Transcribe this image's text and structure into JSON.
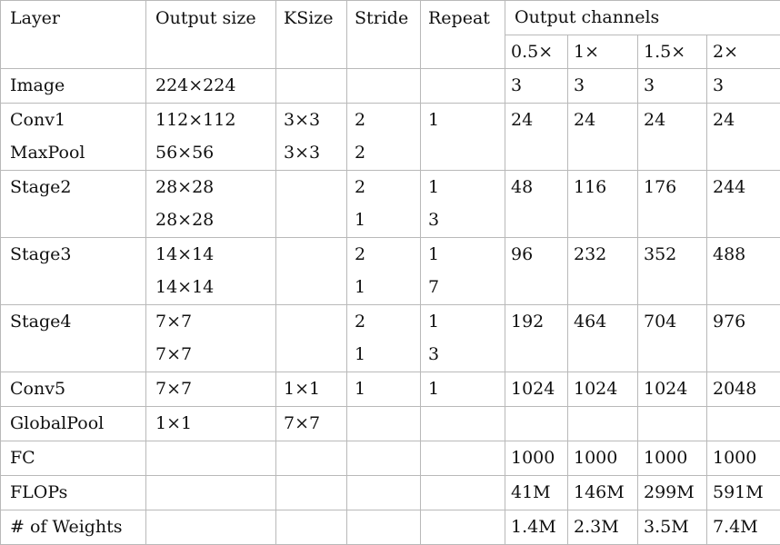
{
  "table": {
    "header": {
      "layer": "Layer",
      "output_size": "Output size",
      "ksize": "KSize",
      "stride": "Stride",
      "repeat": "Repeat",
      "output_channels": "Output channels",
      "widths": [
        "0.5×",
        "1×",
        "1.5×",
        "2×"
      ]
    },
    "rows": [
      {
        "layer": [
          "Image"
        ],
        "output_size": [
          "224×224"
        ],
        "ksize": [
          ""
        ],
        "stride": [
          ""
        ],
        "repeat": [
          ""
        ],
        "channels": [
          "3",
          "3",
          "3",
          "3"
        ]
      },
      {
        "layer": [
          "Conv1",
          "MaxPool"
        ],
        "output_size": [
          "112×112",
          "56×56"
        ],
        "ksize": [
          "3×3",
          "3×3"
        ],
        "stride": [
          "2",
          "2"
        ],
        "repeat": [
          "1",
          ""
        ],
        "channels": [
          "24",
          "24",
          "24",
          "24"
        ]
      },
      {
        "layer": [
          "Stage2",
          ""
        ],
        "output_size": [
          "28×28",
          "28×28"
        ],
        "ksize": [
          "",
          ""
        ],
        "stride": [
          "2",
          "1"
        ],
        "repeat": [
          "1",
          "3"
        ],
        "channels": [
          "48",
          "116",
          "176",
          "244"
        ]
      },
      {
        "layer": [
          "Stage3",
          ""
        ],
        "output_size": [
          "14×14",
          "14×14"
        ],
        "ksize": [
          "",
          ""
        ],
        "stride": [
          "2",
          "1"
        ],
        "repeat": [
          "1",
          "7"
        ],
        "channels": [
          "96",
          "232",
          "352",
          "488"
        ]
      },
      {
        "layer": [
          "Stage4",
          ""
        ],
        "output_size": [
          "7×7",
          "7×7"
        ],
        "ksize": [
          "",
          ""
        ],
        "stride": [
          "2",
          "1"
        ],
        "repeat": [
          "1",
          "3"
        ],
        "channels": [
          "192",
          "464",
          "704",
          "976"
        ]
      },
      {
        "layer": [
          "Conv5"
        ],
        "output_size": [
          "7×7"
        ],
        "ksize": [
          "1×1"
        ],
        "stride": [
          "1"
        ],
        "repeat": [
          "1"
        ],
        "channels": [
          "1024",
          "1024",
          "1024",
          "2048"
        ]
      },
      {
        "layer": [
          "GlobalPool"
        ],
        "output_size": [
          "1×1"
        ],
        "ksize": [
          "7×7"
        ],
        "stride": [
          ""
        ],
        "repeat": [
          ""
        ],
        "channels": [
          "",
          "",
          "",
          ""
        ]
      },
      {
        "layer": [
          "FC"
        ],
        "output_size": [
          ""
        ],
        "ksize": [
          ""
        ],
        "stride": [
          ""
        ],
        "repeat": [
          ""
        ],
        "channels": [
          "1000",
          "1000",
          "1000",
          "1000"
        ]
      },
      {
        "layer": [
          "FLOPs"
        ],
        "output_size": [
          ""
        ],
        "ksize": [
          ""
        ],
        "stride": [
          ""
        ],
        "repeat": [
          ""
        ],
        "channels": [
          "41M",
          "146M",
          "299M",
          "591M"
        ]
      },
      {
        "layer": [
          "# of Weights"
        ],
        "output_size": [
          ""
        ],
        "ksize": [
          ""
        ],
        "stride": [
          ""
        ],
        "repeat": [
          ""
        ],
        "channels": [
          "1.4M",
          "2.3M",
          "3.5M",
          "7.4M"
        ]
      }
    ]
  }
}
